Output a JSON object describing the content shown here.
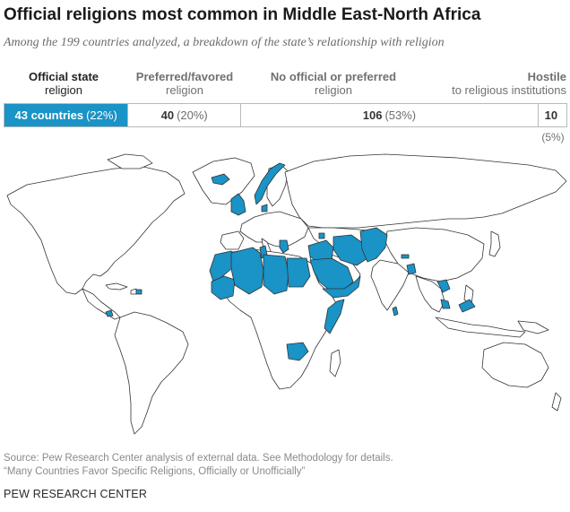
{
  "title": "Official religions most common in Middle East-North Africa",
  "subtitle": "Among the 199 countries analyzed, a breakdown of the state’s relationship with religion",
  "categories": [
    {
      "line1": "Official state",
      "line2": "religion",
      "count": "43 countries",
      "pct": "(22%)",
      "share": 22,
      "active": true
    },
    {
      "line1": "Preferred/favored",
      "line2": "religion",
      "count": "40",
      "pct": "(20%)",
      "share": 20,
      "active": false
    },
    {
      "line1": "No official or preferred",
      "line2": "religion",
      "count": "106",
      "pct": "(53%)",
      "share": 53,
      "active": false
    },
    {
      "line1": "Hostile",
      "line2": "to religious institutions",
      "count": "10",
      "pct": "(5%)",
      "share": 5,
      "active": false
    }
  ],
  "colors": {
    "highlight": "#1a93c6",
    "land": "#ffffff",
    "border": "#333333"
  },
  "map": {
    "highlighted_regions": [
      "Iceland",
      "Norway",
      "Denmark",
      "United Kingdom",
      "Malta",
      "Greece",
      "Armenia",
      "Morocco",
      "Western Sahara",
      "Algeria",
      "Tunisia",
      "Libya",
      "Egypt",
      "Mauritania",
      "Saudi Arabia",
      "Yemen",
      "Oman",
      "United Arab Emirates",
      "Qatar",
      "Bahrain",
      "Kuwait",
      "Iraq",
      "Jordan",
      "Israel",
      "Iran",
      "Afghanistan",
      "Pakistan",
      "Somalia",
      "Djibouti",
      "Zambia",
      "Bangladesh",
      "Bhutan",
      "Sri Lanka",
      "Maldives",
      "Cambodia",
      "Malaysia",
      "Brunei",
      "Costa Rica",
      "Dominican Republic",
      "Comoros"
    ]
  },
  "source": {
    "line1": "Source: Pew Research Center analysis of external data. See Methodology for details.",
    "line2": "“Many Countries Favor Specific Religions, Officially or Unofficially”"
  },
  "brand": "PEW RESEARCH CENTER"
}
